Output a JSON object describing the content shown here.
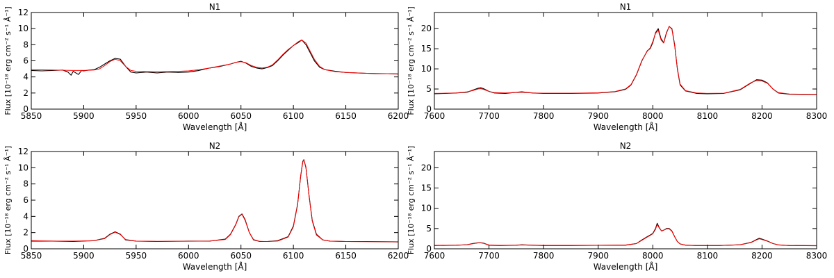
{
  "chart_data": [
    {
      "type": "line",
      "title": "N1",
      "xlabel": "Wavelength [Å]",
      "ylabel": "Flux [10⁻¹⁸ erg cm⁻² s⁻¹ Å⁻¹]",
      "xlim": [
        5850,
        6200
      ],
      "ylim": [
        0,
        12
      ],
      "xticks": [
        5850,
        5900,
        5950,
        6000,
        6050,
        6100,
        6150,
        6200
      ],
      "yticks": [
        0,
        2,
        4,
        6,
        8,
        10,
        12
      ],
      "grid": false,
      "colors": {
        "data": "#000000",
        "fit": "#ff0000"
      },
      "series": [
        {
          "role": "data",
          "x": [
            5850,
            5860,
            5870,
            5880,
            5885,
            5888,
            5890,
            5895,
            5898,
            5900,
            5905,
            5910,
            5915,
            5920,
            5925,
            5930,
            5935,
            5940,
            5945,
            5950,
            5960,
            5970,
            5980,
            5990,
            6000,
            6010,
            6020,
            6030,
            6040,
            6045,
            6050,
            6055,
            6060,
            6065,
            6070,
            6075,
            6080,
            6085,
            6090,
            6095,
            6100,
            6105,
            6108,
            6112,
            6116,
            6120,
            6125,
            6130,
            6140,
            6150,
            6160,
            6170,
            6180,
            6190,
            6200
          ],
          "y": [
            4.8,
            4.75,
            4.8,
            4.85,
            4.6,
            4.2,
            4.7,
            4.3,
            4.8,
            4.75,
            4.85,
            4.9,
            5.2,
            5.6,
            6.0,
            6.3,
            6.2,
            5.3,
            4.6,
            4.5,
            4.6,
            4.5,
            4.6,
            4.55,
            4.6,
            4.8,
            5.1,
            5.3,
            5.6,
            5.8,
            5.95,
            5.7,
            5.3,
            5.1,
            5.0,
            5.15,
            5.4,
            6.0,
            6.7,
            7.3,
            7.9,
            8.3,
            8.6,
            8.0,
            7.0,
            6.0,
            5.2,
            4.9,
            4.7,
            4.55,
            4.5,
            4.45,
            4.4,
            4.4,
            4.35
          ]
        },
        {
          "role": "fit",
          "x": [
            5850,
            5870,
            5890,
            5900,
            5910,
            5915,
            5920,
            5925,
            5930,
            5935,
            5940,
            5945,
            5950,
            5960,
            5970,
            5980,
            5990,
            6000,
            6010,
            6020,
            6030,
            6040,
            6045,
            6050,
            6055,
            6060,
            6065,
            6070,
            6075,
            6080,
            6085,
            6090,
            6095,
            6100,
            6105,
            6108,
            6112,
            6116,
            6120,
            6125,
            6130,
            6140,
            6150,
            6160,
            6170,
            6180,
            6190,
            6200
          ],
          "y": [
            4.9,
            4.85,
            4.8,
            4.8,
            4.85,
            5.0,
            5.4,
            5.9,
            6.2,
            6.0,
            5.3,
            4.8,
            4.7,
            4.65,
            4.65,
            4.65,
            4.7,
            4.75,
            4.9,
            5.1,
            5.35,
            5.6,
            5.8,
            5.9,
            5.75,
            5.4,
            5.2,
            5.1,
            5.2,
            5.5,
            6.1,
            6.8,
            7.4,
            7.9,
            8.4,
            8.6,
            8.2,
            7.2,
            6.2,
            5.3,
            4.9,
            4.65,
            4.55,
            4.5,
            4.45,
            4.42,
            4.4,
            4.38
          ]
        }
      ]
    },
    {
      "type": "line",
      "title": "N1",
      "xlabel": "Wavelength [Å]",
      "ylabel": "Flux [10⁻¹⁸ erg cm⁻² s⁻¹ Å⁻¹]",
      "xlim": [
        7600,
        8300
      ],
      "ylim": [
        0,
        24
      ],
      "xticks": [
        7600,
        7700,
        7800,
        7900,
        8000,
        8100,
        8200,
        8300
      ],
      "yticks": [
        0,
        5,
        10,
        15,
        20
      ],
      "grid": false,
      "colors": {
        "data": "#000000",
        "fit": "#ff0000"
      },
      "series": [
        {
          "role": "data",
          "x": [
            7600,
            7620,
            7640,
            7660,
            7670,
            7680,
            7685,
            7690,
            7700,
            7710,
            7730,
            7760,
            7780,
            7800,
            7850,
            7900,
            7930,
            7950,
            7960,
            7970,
            7980,
            7990,
            7995,
            8000,
            8005,
            8010,
            8015,
            8020,
            8025,
            8030,
            8035,
            8040,
            8045,
            8050,
            8060,
            8080,
            8100,
            8130,
            8160,
            8180,
            8190,
            8200,
            8210,
            8220,
            8230,
            8250,
            8300
          ],
          "y": [
            3.8,
            3.9,
            4.0,
            4.2,
            4.7,
            5.2,
            5.3,
            5.1,
            4.4,
            4.0,
            3.9,
            4.3,
            4.0,
            3.9,
            3.9,
            4.0,
            4.3,
            4.9,
            6.0,
            8.5,
            12.0,
            14.5,
            15.0,
            16.5,
            19.0,
            20.0,
            17.5,
            16.5,
            19.0,
            20.5,
            20.0,
            16.0,
            10.0,
            6.0,
            4.5,
            3.9,
            3.8,
            3.9,
            4.8,
            6.5,
            7.3,
            7.2,
            6.5,
            5.0,
            4.0,
            3.7,
            3.6
          ]
        },
        {
          "role": "fit",
          "x": [
            7600,
            7620,
            7640,
            7660,
            7670,
            7680,
            7685,
            7690,
            7700,
            7710,
            7730,
            7760,
            7780,
            7800,
            7850,
            7900,
            7930,
            7950,
            7960,
            7970,
            7980,
            7990,
            7995,
            8000,
            8005,
            8010,
            8015,
            8020,
            8025,
            8030,
            8035,
            8040,
            8045,
            8050,
            8060,
            8080,
            8100,
            8130,
            8160,
            8180,
            8190,
            8200,
            8210,
            8220,
            8230,
            8250,
            8300
          ],
          "y": [
            3.9,
            3.95,
            4.0,
            4.3,
            4.6,
            5.0,
            5.1,
            4.9,
            4.4,
            4.1,
            4.0,
            4.2,
            4.0,
            3.95,
            3.95,
            4.05,
            4.35,
            5.0,
            6.1,
            8.6,
            12.1,
            14.4,
            15.2,
            16.8,
            18.8,
            19.6,
            17.2,
            16.4,
            18.8,
            20.6,
            19.8,
            15.8,
            10.2,
            6.2,
            4.6,
            4.0,
            3.9,
            3.95,
            4.9,
            6.6,
            7.1,
            7.0,
            6.4,
            5.0,
            4.1,
            3.75,
            3.65
          ]
        }
      ]
    },
    {
      "type": "line",
      "title": "N2",
      "xlabel": "Wavelength [Å]",
      "ylabel": "Flux [10⁻¹⁸ erg cm⁻² s⁻¹ Å⁻¹]",
      "xlim": [
        5850,
        6200
      ],
      "ylim": [
        0,
        12
      ],
      "xticks": [
        5850,
        5900,
        5950,
        6000,
        6050,
        6100,
        6150,
        6200
      ],
      "yticks": [
        0,
        2,
        4,
        6,
        8,
        10,
        12
      ],
      "grid": false,
      "colors": {
        "data": "#000000",
        "fit": "#ff0000"
      },
      "series": [
        {
          "role": "data",
          "x": [
            5850,
            5870,
            5890,
            5910,
            5920,
            5925,
            5930,
            5935,
            5940,
            5950,
            5970,
            6000,
            6020,
            6035,
            6040,
            6045,
            6048,
            6051,
            6054,
            6058,
            6062,
            6068,
            6075,
            6085,
            6095,
            6100,
            6104,
            6107,
            6109,
            6110,
            6112,
            6115,
            6118,
            6122,
            6128,
            6135,
            6150,
            6170,
            6200
          ],
          "y": [
            0.95,
            0.95,
            0.9,
            1.0,
            1.3,
            1.8,
            2.1,
            1.8,
            1.1,
            0.95,
            0.9,
            0.95,
            0.95,
            1.2,
            1.8,
            3.0,
            4.0,
            4.3,
            3.6,
            2.0,
            1.1,
            0.9,
            0.9,
            1.0,
            1.5,
            2.8,
            5.5,
            9.0,
            10.8,
            11.0,
            10.0,
            6.5,
            3.5,
            1.8,
            1.1,
            0.95,
            0.9,
            0.9,
            0.85
          ]
        },
        {
          "role": "fit",
          "x": [
            5850,
            5870,
            5890,
            5910,
            5920,
            5925,
            5930,
            5935,
            5940,
            5950,
            5970,
            6000,
            6020,
            6035,
            6040,
            6045,
            6048,
            6051,
            6054,
            6058,
            6062,
            6068,
            6075,
            6085,
            6095,
            6100,
            6104,
            6107,
            6109,
            6110,
            6112,
            6115,
            6118,
            6122,
            6128,
            6135,
            6150,
            6170,
            6200
          ],
          "y": [
            1.0,
            0.95,
            0.95,
            1.0,
            1.25,
            1.75,
            2.05,
            1.75,
            1.15,
            0.95,
            0.92,
            0.93,
            0.95,
            1.15,
            1.75,
            2.95,
            3.95,
            4.25,
            3.5,
            2.0,
            1.15,
            0.92,
            0.9,
            0.95,
            1.45,
            2.7,
            5.4,
            9.1,
            10.7,
            11.0,
            10.1,
            6.4,
            3.4,
            1.7,
            1.1,
            0.95,
            0.9,
            0.88,
            0.87
          ]
        }
      ]
    },
    {
      "type": "line",
      "title": "N2",
      "xlabel": "Wavelength [Å]",
      "ylabel": "Flux [10⁻¹⁸ erg cm⁻² s⁻¹ Å⁻¹]",
      "xlim": [
        7600,
        8300
      ],
      "ylim": [
        0,
        24
      ],
      "xticks": [
        7600,
        7700,
        7800,
        7900,
        8000,
        8100,
        8200,
        8300
      ],
      "yticks": [
        0,
        5,
        10,
        15,
        20
      ],
      "grid": false,
      "colors": {
        "data": "#000000",
        "fit": "#ff0000"
      },
      "series": [
        {
          "role": "data",
          "x": [
            7600,
            7640,
            7660,
            7670,
            7680,
            7685,
            7690,
            7700,
            7720,
            7750,
            7760,
            7780,
            7800,
            7850,
            7900,
            7950,
            7970,
            7980,
            7990,
            7995,
            8000,
            8005,
            8008,
            8012,
            8016,
            8020,
            8025,
            8030,
            8035,
            8040,
            8045,
            8050,
            8060,
            8080,
            8120,
            8160,
            8180,
            8190,
            8195,
            8200,
            8210,
            8220,
            8230,
            8250,
            8300
          ],
          "y": [
            0.8,
            0.9,
            1.0,
            1.3,
            1.5,
            1.5,
            1.4,
            0.9,
            0.8,
            0.9,
            1.0,
            0.9,
            0.8,
            0.8,
            0.85,
            0.9,
            1.3,
            2.2,
            3.0,
            3.4,
            3.8,
            5.0,
            6.3,
            5.2,
            4.4,
            4.6,
            5.0,
            5.0,
            4.4,
            3.0,
            1.8,
            1.2,
            0.9,
            0.8,
            0.8,
            1.0,
            1.6,
            2.3,
            2.6,
            2.4,
            1.9,
            1.3,
            0.95,
            0.8,
            0.75
          ]
        },
        {
          "role": "fit",
          "x": [
            7600,
            7640,
            7660,
            7670,
            7680,
            7685,
            7690,
            7700,
            7720,
            7750,
            7760,
            7780,
            7800,
            7850,
            7900,
            7950,
            7970,
            7980,
            7990,
            7995,
            8000,
            8005,
            8008,
            8012,
            8016,
            8020,
            8025,
            8030,
            8035,
            8040,
            8045,
            8050,
            8060,
            8080,
            8120,
            8160,
            8180,
            8190,
            8195,
            8200,
            8210,
            8220,
            8230,
            8250,
            8300
          ],
          "y": [
            0.85,
            0.9,
            1.0,
            1.25,
            1.45,
            1.45,
            1.35,
            0.95,
            0.85,
            0.9,
            0.95,
            0.9,
            0.85,
            0.85,
            0.88,
            0.95,
            1.3,
            2.1,
            2.9,
            3.3,
            3.7,
            4.8,
            6.0,
            5.1,
            4.4,
            4.6,
            4.9,
            4.9,
            4.3,
            3.0,
            1.8,
            1.2,
            0.92,
            0.82,
            0.82,
            1.0,
            1.55,
            2.2,
            2.45,
            2.3,
            1.85,
            1.3,
            0.98,
            0.82,
            0.78
          ]
        }
      ]
    }
  ]
}
